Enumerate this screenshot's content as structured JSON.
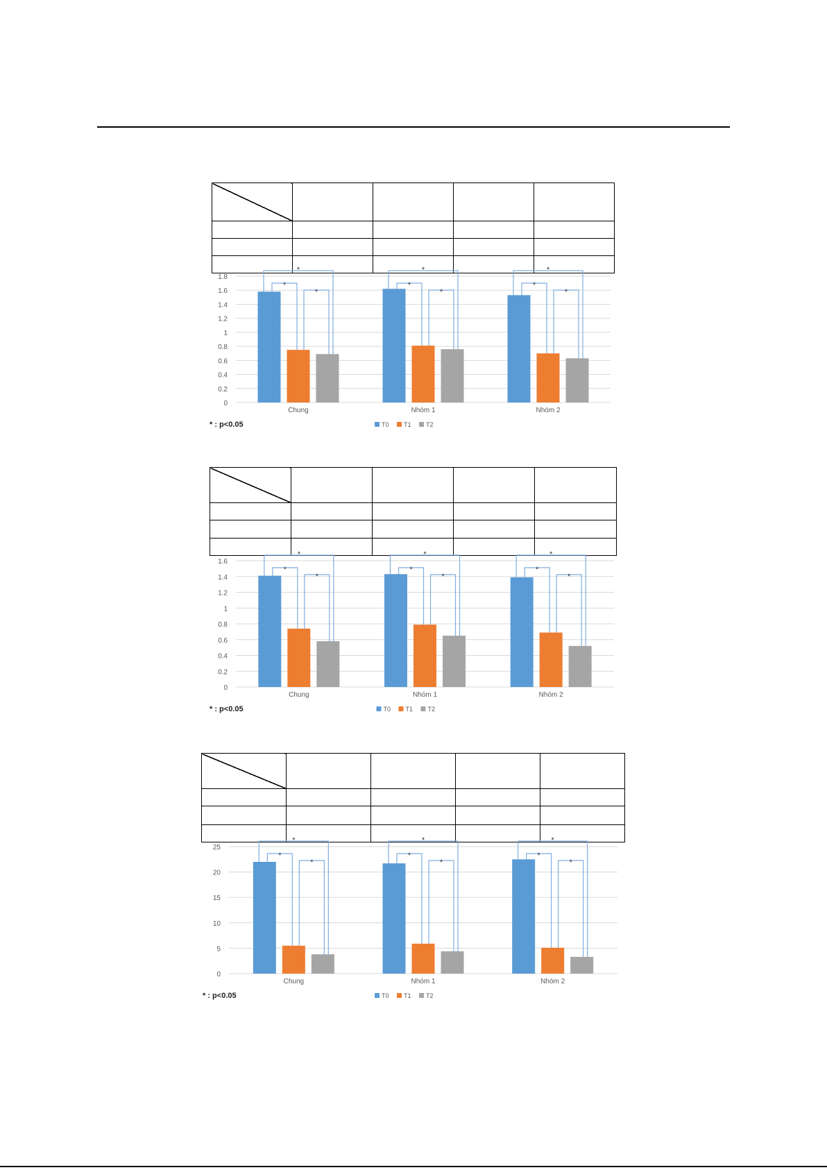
{
  "colors": {
    "T0": "#5b9bd5",
    "T1": "#ed7d31",
    "T2": "#a5a5a5",
    "bracket": "#7faedf",
    "grid": "#d9d9d9",
    "axis_text": "#595959"
  },
  "chart_data": [
    {
      "type": "bar",
      "categories": [
        "Chung",
        "Nhóm 1",
        "Nhóm 2"
      ],
      "series": [
        {
          "name": "T0",
          "values": [
            1.58,
            1.62,
            1.53
          ]
        },
        {
          "name": "T1",
          "values": [
            0.75,
            0.81,
            0.7
          ]
        },
        {
          "name": "T2",
          "values": [
            0.69,
            0.76,
            0.63
          ]
        }
      ],
      "ylim": [
        0,
        1.8
      ],
      "yticks": [
        "0",
        "0.2",
        "0.4",
        "0.6",
        "0.8",
        "1",
        "1.2",
        "1.4",
        "1.6",
        "1.8"
      ],
      "grid": true,
      "legend": "bottom",
      "significance_marker": "*",
      "footnote": "* : p<0.05"
    },
    {
      "type": "bar",
      "categories": [
        "Chung",
        "Nhóm 1",
        "Nhóm 2"
      ],
      "series": [
        {
          "name": "T0",
          "values": [
            1.41,
            1.43,
            1.39
          ]
        },
        {
          "name": "T1",
          "values": [
            0.74,
            0.79,
            0.69
          ]
        },
        {
          "name": "T2",
          "values": [
            0.58,
            0.65,
            0.52
          ]
        }
      ],
      "ylim": [
        0,
        1.6
      ],
      "yticks": [
        "0",
        "0.2",
        "0.4",
        "0.6",
        "0.8",
        "1",
        "1.2",
        "1.4",
        "1.6"
      ],
      "grid": true,
      "legend": "bottom",
      "significance_marker": "*",
      "footnote": "* : p<0.05"
    },
    {
      "type": "bar",
      "categories": [
        "Chung",
        "Nhóm 1",
        "Nhóm 2"
      ],
      "series": [
        {
          "name": "T0",
          "values": [
            22.0,
            21.7,
            22.5
          ]
        },
        {
          "name": "T1",
          "values": [
            5.5,
            5.9,
            5.1
          ]
        },
        {
          "name": "T2",
          "values": [
            3.8,
            4.4,
            3.3
          ]
        }
      ],
      "ylim": [
        0,
        25
      ],
      "yticks": [
        "0",
        "5",
        "10",
        "15",
        "20",
        "25"
      ],
      "grid": true,
      "legend": "bottom",
      "significance_marker": "*",
      "footnote": "* : p<0.05"
    }
  ]
}
